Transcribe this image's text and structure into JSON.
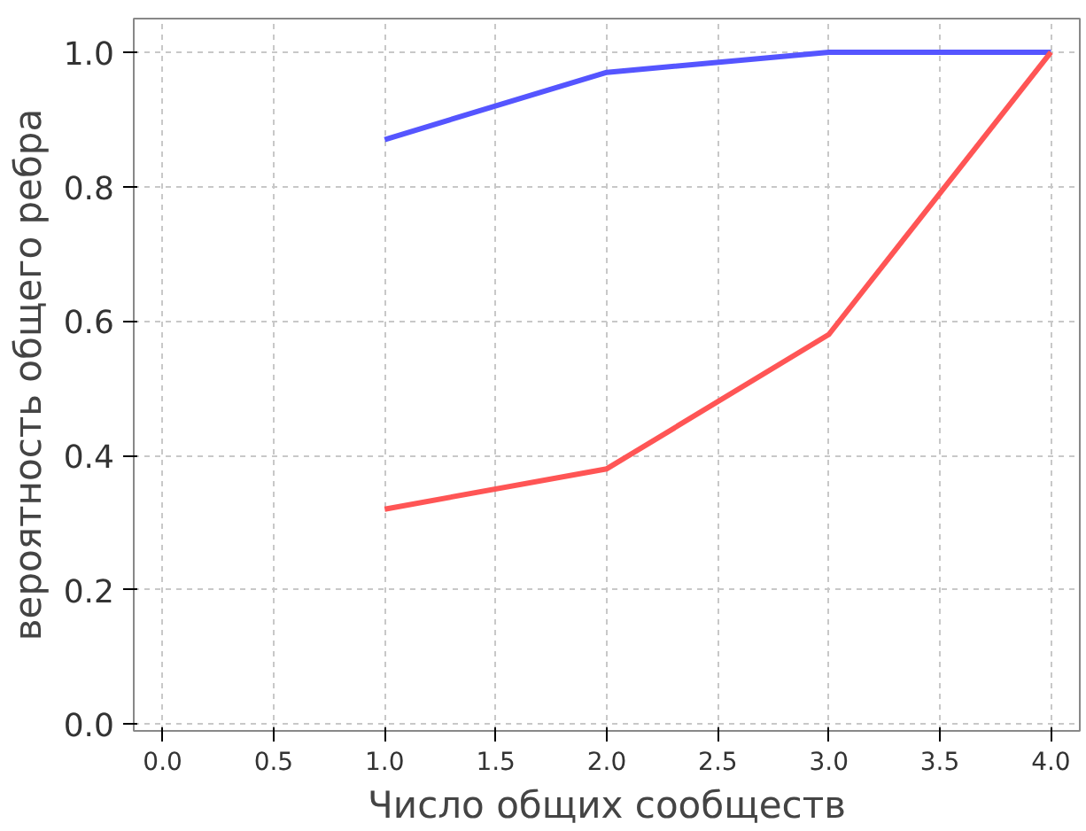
{
  "chart_data": {
    "type": "line",
    "xlabel": "Число общих сообществ",
    "ylabel": "вероятность общего ребра",
    "x": [
      1,
      2,
      3,
      4
    ],
    "series": [
      {
        "color": "#5555ff",
        "values": [
          0.87,
          0.97,
          1.0,
          1.0
        ]
      },
      {
        "color": "#ff5555",
        "values": [
          0.32,
          0.38,
          0.58,
          1.0
        ]
      }
    ],
    "xlim": [
      -0.13,
      4.13
    ],
    "ylim": [
      -0.01,
      1.05
    ],
    "xticks": [
      {
        "value": 0,
        "label": "0.0"
      },
      0.5,
      {
        "value": 1,
        "label": "1.0"
      },
      1.5,
      {
        "value": 2,
        "label": "2.0"
      },
      2.5,
      {
        "value": 3,
        "label": "3.0"
      },
      3.5,
      {
        "value": 4,
        "label": "4.0"
      }
    ],
    "yticks": [
      {
        "value": 0,
        "label": "0.0"
      },
      0.2,
      0.4,
      0.6,
      0.8,
      {
        "value": 1,
        "label": "1.0"
      }
    ],
    "grid": true,
    "marker": "none",
    "line_style": "solid"
  }
}
